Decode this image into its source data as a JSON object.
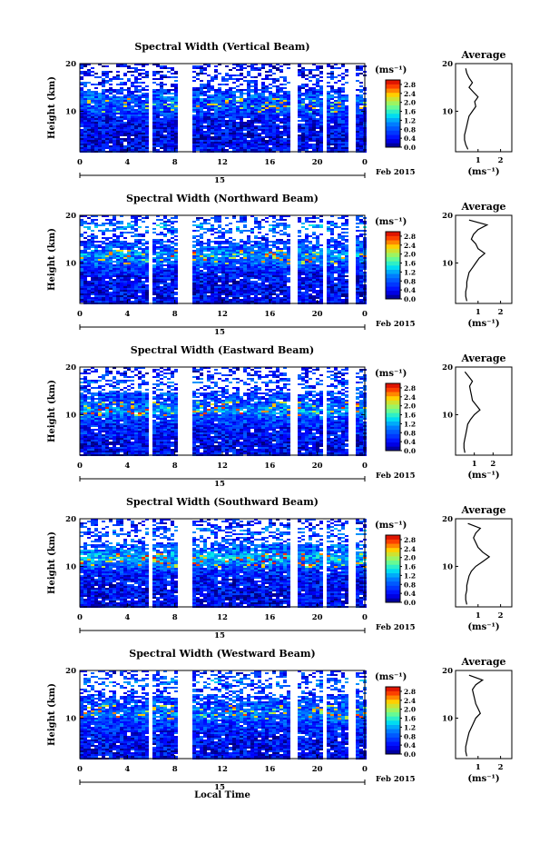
{
  "figure": {
    "date_label": "Feb 2015",
    "day_label": "15",
    "xlabel": "Local Time",
    "colorbar_unit": "(ms⁻¹)",
    "average_title": "Average",
    "average_xlabel": "(ms⁻¹)"
  },
  "chart_data": [
    {
      "type": "heatmap",
      "title": "Spectral Width (Vertical Beam)",
      "ylabel": "Height (km)",
      "x_ticks": [
        "0",
        "4",
        "8",
        "12",
        "16",
        "20",
        "0"
      ],
      "y_ticks": [
        "10",
        "20"
      ],
      "x_range_hours": [
        0,
        24
      ],
      "y_range_km": [
        1.5,
        20
      ],
      "data_gaps_hours": [
        [
          5.7,
          6.0
        ],
        [
          8.1,
          9.2
        ],
        [
          17.7,
          18.1
        ],
        [
          20.4,
          20.7
        ],
        [
          22.6,
          23.1
        ]
      ],
      "colorbar": {
        "range": [
          0,
          3.0
        ],
        "tick_labels": [
          "2.8",
          "2.4",
          "2.0",
          "1.6",
          "1.2",
          "0.8",
          "0.4",
          "0.0"
        ]
      },
      "average_profile": {
        "x_ticks": [
          "1",
          "2"
        ],
        "y_ticks": [
          "10",
          "20"
        ],
        "xlim": [
          0,
          2.5
        ],
        "heights_km": [
          2,
          3,
          4,
          5,
          6,
          7,
          8,
          9,
          10,
          11,
          12,
          13,
          14,
          15,
          16,
          17,
          18,
          19
        ],
        "values": [
          0.55,
          0.45,
          0.4,
          0.4,
          0.45,
          0.5,
          0.55,
          0.6,
          0.75,
          0.9,
          0.85,
          1.0,
          0.8,
          0.6,
          0.75,
          0.6,
          0.5,
          0.45
        ]
      }
    },
    {
      "type": "heatmap",
      "title": "Spectral Width (Northward Beam)",
      "ylabel": "Height (km)",
      "x_ticks": [
        "0",
        "4",
        "8",
        "12",
        "16",
        "20",
        "0"
      ],
      "y_ticks": [
        "10",
        "20"
      ],
      "x_range_hours": [
        0,
        24
      ],
      "y_range_km": [
        1.5,
        20
      ],
      "data_gaps_hours": [
        [
          5.7,
          6.0
        ],
        [
          8.1,
          9.2
        ],
        [
          17.7,
          18.1
        ],
        [
          20.4,
          20.7
        ],
        [
          22.6,
          23.1
        ]
      ],
      "colorbar": {
        "range": [
          0,
          3.0
        ],
        "tick_labels": [
          "2.8",
          "2.4",
          "2.0",
          "1.6",
          "1.2",
          "0.8",
          "0.4",
          "0.0"
        ]
      },
      "average_profile": {
        "x_ticks": [
          "1",
          "2"
        ],
        "y_ticks": [
          "10",
          "20"
        ],
        "xlim": [
          0,
          2.5
        ],
        "heights_km": [
          2,
          3,
          4,
          5,
          6,
          7,
          8,
          9,
          10,
          11,
          12,
          13,
          14,
          15,
          16,
          17,
          18,
          19
        ],
        "values": [
          0.5,
          0.45,
          0.45,
          0.5,
          0.5,
          0.55,
          0.6,
          0.75,
          0.9,
          1.05,
          1.3,
          1.0,
          0.9,
          0.7,
          0.8,
          1.0,
          1.4,
          0.6
        ]
      }
    },
    {
      "type": "heatmap",
      "title": "Spectral Width (Eastward Beam)",
      "ylabel": "Height (km)",
      "x_ticks": [
        "0",
        "4",
        "8",
        "12",
        "16",
        "20",
        "0"
      ],
      "y_ticks": [
        "10",
        "20"
      ],
      "x_range_hours": [
        0,
        24
      ],
      "y_range_km": [
        1.5,
        20
      ],
      "data_gaps_hours": [
        [
          5.7,
          6.0
        ],
        [
          8.1,
          9.2
        ],
        [
          17.7,
          18.1
        ],
        [
          20.4,
          20.7
        ],
        [
          22.6,
          23.1
        ]
      ],
      "colorbar": {
        "range": [
          0,
          3.0
        ],
        "tick_labels": [
          "2.8",
          "2.4",
          "2.0",
          "1.6",
          "1.2",
          "0.8",
          "0.4",
          "0.0"
        ]
      },
      "average_profile": {
        "x_ticks": [
          "1",
          "2"
        ],
        "y_ticks": [
          "10",
          "20"
        ],
        "xlim": [
          0,
          3
        ],
        "heights_km": [
          2,
          3,
          4,
          5,
          6,
          7,
          8,
          9,
          10,
          11,
          12,
          13,
          14,
          15,
          16,
          17,
          18,
          19
        ],
        "values": [
          0.5,
          0.45,
          0.45,
          0.5,
          0.55,
          0.6,
          0.65,
          0.8,
          1.0,
          1.3,
          1.1,
          0.9,
          0.85,
          0.8,
          0.75,
          0.9,
          0.7,
          0.5
        ]
      }
    },
    {
      "type": "heatmap",
      "title": "Spectral Width (Southward Beam)",
      "ylabel": "Height (km)",
      "x_ticks": [
        "0",
        "4",
        "8",
        "12",
        "16",
        "20",
        "0"
      ],
      "y_ticks": [
        "10",
        "20"
      ],
      "x_range_hours": [
        0,
        24
      ],
      "y_range_km": [
        1.5,
        20
      ],
      "data_gaps_hours": [
        [
          5.7,
          6.0
        ],
        [
          8.1,
          9.2
        ],
        [
          17.7,
          18.1
        ],
        [
          20.4,
          20.7
        ],
        [
          22.6,
          23.1
        ]
      ],
      "colorbar": {
        "range": [
          0,
          3.0
        ],
        "tick_labels": [
          "2.8",
          "2.4",
          "2.0",
          "1.6",
          "1.2",
          "0.8",
          "0.4",
          "0.0"
        ]
      },
      "average_profile": {
        "x_ticks": [
          "1",
          "2"
        ],
        "y_ticks": [
          "10",
          "20"
        ],
        "xlim": [
          0,
          2.5
        ],
        "heights_km": [
          2,
          3,
          4,
          5,
          6,
          7,
          8,
          9,
          10,
          11,
          12,
          13,
          14,
          15,
          16,
          17,
          18,
          19
        ],
        "values": [
          0.5,
          0.45,
          0.45,
          0.5,
          0.5,
          0.55,
          0.6,
          0.7,
          0.9,
          1.2,
          1.5,
          1.2,
          1.0,
          0.9,
          0.8,
          0.9,
          1.1,
          0.55
        ]
      }
    },
    {
      "type": "heatmap",
      "title": "Spectral Width (Westward Beam)",
      "ylabel": "Height (km)",
      "x_ticks": [
        "0",
        "4",
        "8",
        "12",
        "16",
        "20",
        "0"
      ],
      "y_ticks": [
        "10",
        "20"
      ],
      "x_range_hours": [
        0,
        24
      ],
      "y_range_km": [
        1.5,
        20
      ],
      "data_gaps_hours": [
        [
          5.7,
          6.0
        ],
        [
          8.1,
          9.2
        ],
        [
          17.7,
          18.1
        ],
        [
          20.4,
          20.7
        ],
        [
          22.6,
          23.1
        ]
      ],
      "colorbar": {
        "range": [
          0,
          3.0
        ],
        "tick_labels": [
          "2.8",
          "2.4",
          "2.0",
          "1.6",
          "1.2",
          "0.8",
          "0.4",
          "0.0"
        ]
      },
      "average_profile": {
        "x_ticks": [
          "1",
          "2"
        ],
        "y_ticks": [
          "10",
          "20"
        ],
        "xlim": [
          0,
          2.5
        ],
        "heights_km": [
          2,
          3,
          4,
          5,
          6,
          7,
          8,
          9,
          10,
          11,
          12,
          13,
          14,
          15,
          16,
          17,
          18,
          19
        ],
        "values": [
          0.5,
          0.45,
          0.45,
          0.5,
          0.55,
          0.6,
          0.7,
          0.8,
          0.9,
          1.1,
          1.0,
          0.9,
          0.85,
          0.8,
          0.75,
          0.9,
          1.2,
          0.6
        ]
      }
    }
  ]
}
